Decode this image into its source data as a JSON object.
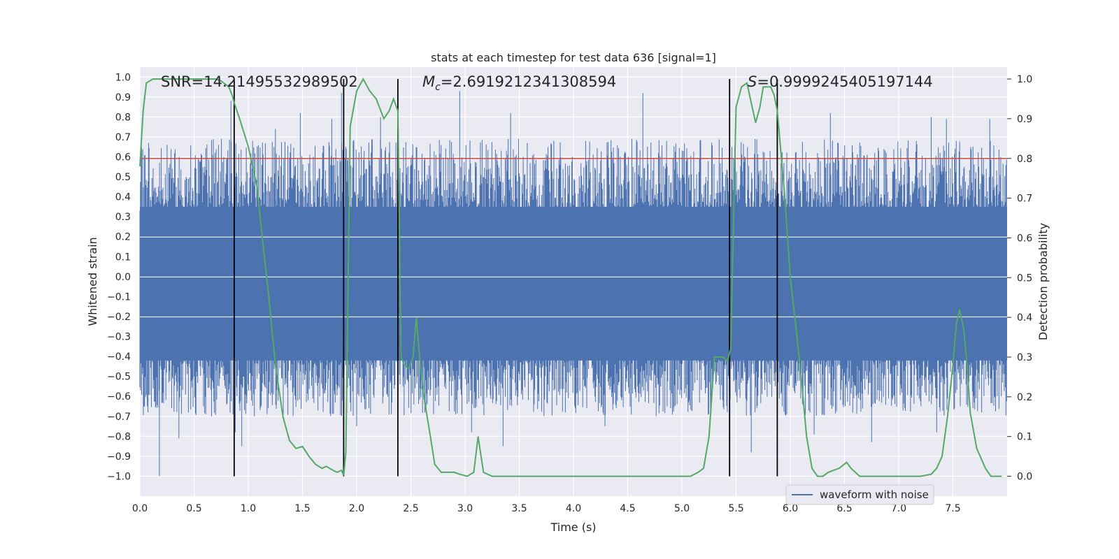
{
  "chart_data": {
    "type": "line",
    "title": "stats at each timestep for test data 636 [signal=1]",
    "xlabel": "Time (s)",
    "ylabel_left": "Whitened strain",
    "ylabel_right": "Detection probability",
    "xlim": [
      0,
      8
    ],
    "ylim_left": [
      -1.1,
      1.05
    ],
    "ylim_right": [
      -0.05,
      1.03
    ],
    "grid": true,
    "legend": {
      "position": "lower-right",
      "entries": [
        "waveform with noise"
      ]
    },
    "x_ticks": [
      "0.0",
      "0.5",
      "1.0",
      "1.5",
      "2.0",
      "2.5",
      "3.0",
      "3.5",
      "4.0",
      "4.5",
      "5.0",
      "5.5",
      "6.0",
      "6.5",
      "7.0",
      "7.5"
    ],
    "y_left_ticks": [
      "1.0",
      "0.9",
      "0.8",
      "0.7",
      "0.6",
      "0.5",
      "0.4",
      "0.3",
      "0.2",
      "0.1",
      "0.0",
      "−0.1",
      "−0.2",
      "−0.3",
      "−0.4",
      "−0.5",
      "−0.6",
      "−0.7",
      "−0.8",
      "−0.9",
      "−1.0"
    ],
    "y_right_ticks": [
      "1.0",
      "0.9",
      "0.8",
      "0.7",
      "0.6",
      "0.5",
      "0.4",
      "0.3",
      "0.2",
      "0.1",
      "0.0"
    ],
    "annotations": {
      "snr": "SNR=14.21495532989502",
      "mc_symbol": "M",
      "mc_sub": "c",
      "mc_value": "=2.6919212341308594",
      "s_symbol": "S",
      "s_value": "=0.9999245405197144"
    },
    "threshold": {
      "value": 0.8,
      "axis": "right",
      "color": "#c44e52"
    },
    "vertical_lines": [
      0.87,
      1.88,
      2.38,
      5.44,
      5.88
    ],
    "waveform": {
      "name": "waveform with noise",
      "color": "#4c72b0",
      "dense_band": [
        -0.42,
        0.35
      ],
      "spikes": [
        [
          0.18,
          -1.0
        ],
        [
          0.36,
          -0.81
        ],
        [
          0.84,
          0.88
        ],
        [
          0.88,
          -0.78
        ],
        [
          0.94,
          -0.85
        ],
        [
          1.25,
          0.74
        ],
        [
          1.48,
          0.82
        ],
        [
          1.77,
          0.79
        ],
        [
          1.86,
          0.92
        ],
        [
          2.0,
          -0.75
        ],
        [
          2.22,
          0.8
        ],
        [
          2.95,
          0.93
        ],
        [
          3.06,
          -0.78
        ],
        [
          3.35,
          -0.85
        ],
        [
          3.42,
          0.82
        ],
        [
          4.29,
          -0.75
        ],
        [
          4.64,
          0.92
        ],
        [
          5.64,
          -0.88
        ],
        [
          5.88,
          0.82
        ],
        [
          6.22,
          -0.79
        ],
        [
          6.37,
          0.82
        ],
        [
          6.75,
          -0.83
        ],
        [
          7.3,
          0.8
        ],
        [
          7.35,
          -0.78
        ],
        [
          7.44,
          0.79
        ],
        [
          7.84,
          0.79
        ]
      ]
    },
    "probability": {
      "color": "#55a868",
      "x": [
        0.0,
        0.03,
        0.06,
        0.12,
        0.2,
        0.3,
        0.5,
        0.6,
        0.7,
        0.75,
        0.82,
        0.85,
        0.87,
        0.92,
        1.0,
        1.08,
        1.13,
        1.19,
        1.25,
        1.32,
        1.38,
        1.44,
        1.5,
        1.56,
        1.62,
        1.68,
        1.72,
        1.78,
        1.82,
        1.86,
        1.88,
        1.9,
        1.94,
        2.0,
        2.06,
        2.12,
        2.18,
        2.25,
        2.3,
        2.34,
        2.38,
        2.41,
        2.44,
        2.48,
        2.52,
        2.55,
        2.58,
        2.62,
        2.68,
        2.72,
        2.78,
        2.9,
        2.95,
        3.02,
        3.08,
        3.12,
        3.17,
        3.25,
        3.5,
        4.0,
        4.5,
        5.0,
        5.08,
        5.15,
        5.2,
        5.25,
        5.3,
        5.35,
        5.38,
        5.42,
        5.45,
        5.5,
        5.55,
        5.6,
        5.68,
        5.72,
        5.75,
        5.82,
        5.85,
        5.88,
        5.95,
        6.0,
        6.05,
        6.1,
        6.15,
        6.2,
        6.25,
        6.3,
        6.35,
        6.4,
        6.45,
        6.52,
        6.56,
        6.6,
        6.64,
        6.68,
        6.72,
        6.8,
        6.9,
        7.0,
        7.1,
        7.2,
        7.3,
        7.35,
        7.4,
        7.45,
        7.5,
        7.53,
        7.56,
        7.6,
        7.63,
        7.66,
        7.72,
        7.8,
        7.85,
        7.9,
        7.95
      ],
      "y": [
        0.78,
        0.92,
        0.99,
        1.0,
        1.0,
        1.0,
        1.0,
        1.0,
        1.0,
        0.995,
        0.98,
        0.96,
        0.94,
        0.9,
        0.83,
        0.73,
        0.6,
        0.45,
        0.28,
        0.15,
        0.09,
        0.07,
        0.075,
        0.05,
        0.03,
        0.02,
        0.025,
        0.015,
        0.01,
        0.015,
        0.002,
        0.06,
        0.88,
        0.97,
        1.0,
        0.97,
        0.95,
        0.9,
        0.92,
        0.95,
        0.92,
        0.3,
        0.28,
        0.27,
        0.3,
        0.4,
        0.3,
        0.2,
        0.1,
        0.03,
        0.01,
        0.01,
        0.005,
        0.0,
        0.01,
        0.1,
        0.01,
        0.0,
        0.0,
        0.0,
        0.0,
        0.0,
        0.0,
        0.01,
        0.02,
        0.1,
        0.3,
        0.3,
        0.3,
        0.29,
        0.32,
        0.93,
        0.98,
        0.99,
        0.89,
        0.93,
        0.98,
        0.98,
        0.96,
        0.92,
        0.7,
        0.5,
        0.38,
        0.25,
        0.1,
        0.02,
        0.0,
        0.0,
        0.01,
        0.015,
        0.02,
        0.035,
        0.02,
        0.01,
        0.0,
        0.0,
        0.0,
        0.0,
        0.0,
        0.0,
        0.0,
        0.0,
        0.005,
        0.02,
        0.05,
        0.15,
        0.28,
        0.38,
        0.42,
        0.37,
        0.28,
        0.16,
        0.07,
        0.02,
        0.0,
        0.0,
        0.0
      ]
    }
  }
}
